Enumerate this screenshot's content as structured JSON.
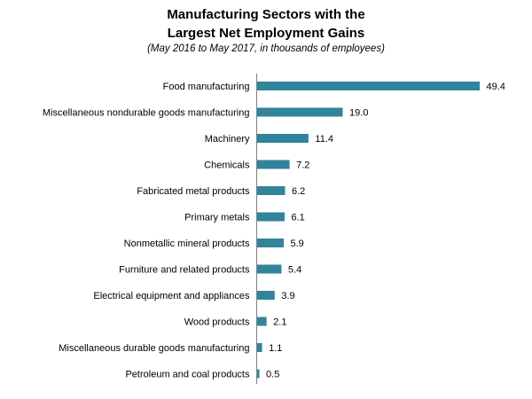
{
  "chart_data": {
    "type": "bar",
    "orientation": "horizontal",
    "title": "Manufacturing Sectors with the Largest Net Employment Gains",
    "title_line1": "Manufacturing Sectors with the",
    "title_line2": "Largest Net Employment Gains",
    "subtitle": "(May 2016 to May 2017, in thousands of employees)",
    "categories": [
      "Food manufacturing",
      "Miscellaneous nondurable goods manufacturing",
      "Machinery",
      "Chemicals",
      "Fabricated metal products",
      "Primary metals",
      "Nonmetallic mineral products",
      "Furniture and related products",
      "Electrical equipment and appliances",
      "Wood products",
      "Miscellaneous durable goods manufacturing",
      "Petroleum and coal products"
    ],
    "values": [
      49.4,
      19.0,
      11.4,
      7.2,
      6.2,
      6.1,
      5.9,
      5.4,
      3.9,
      2.1,
      1.1,
      0.5
    ],
    "value_labels": [
      "49.4",
      "19.0",
      "11.4",
      "7.2",
      "6.2",
      "6.1",
      "5.9",
      "5.4",
      "3.9",
      "2.1",
      "1.1",
      "0.5"
    ],
    "xlim": [
      0,
      49.4
    ],
    "bar_color": "#31849b",
    "grid": false,
    "legend": "none"
  }
}
